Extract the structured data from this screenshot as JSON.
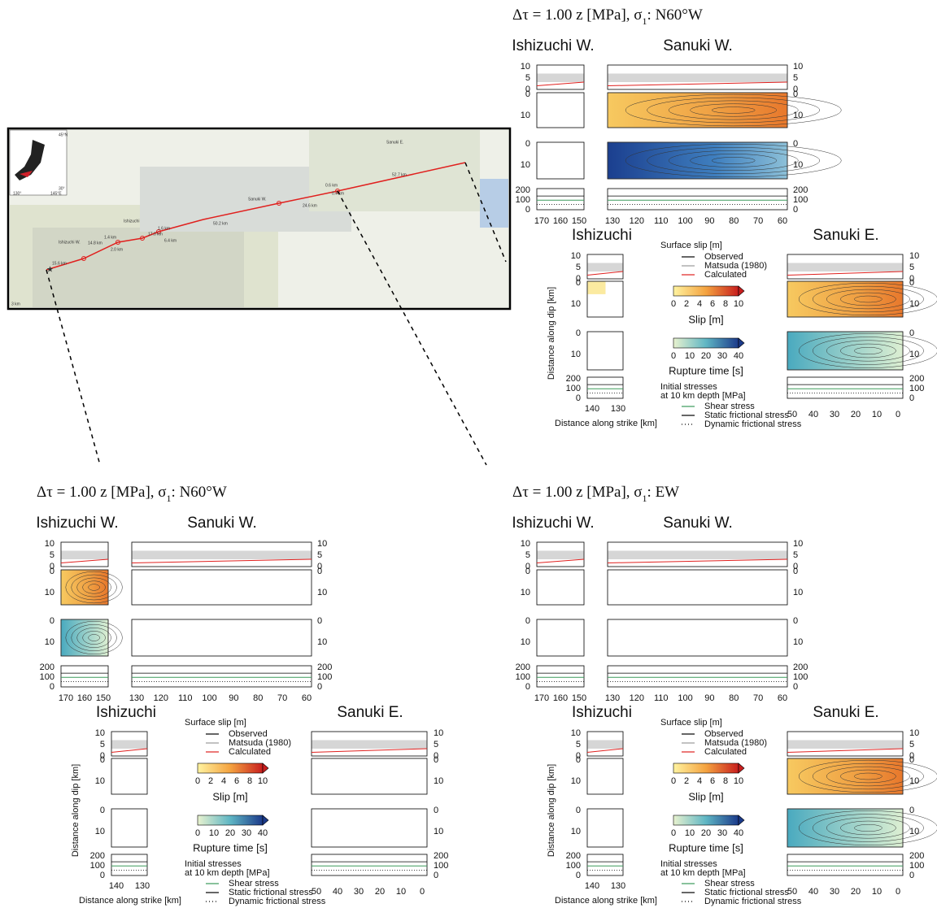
{
  "map": {
    "labels": [
      "45°N",
      "30°",
      "130°",
      "145°E",
      "Sanuki E.",
      "52.7 km",
      "0.6 km",
      "0.4 km",
      "Sanuki W.",
      "24.6 km",
      "50.2 km",
      "Ishizuchi",
      "1.6 km",
      "17.0 km",
      "6.4 km",
      "1.4 km",
      "Ishizuchi W.",
      "14.8 km",
      "2.0 km",
      "15.6 km",
      "3 km"
    ]
  },
  "figures": [
    {
      "title": {
        "text": "Δτ = 1.00 z [MPa], σ",
        "subscript": "1",
        "orientation": ": N60°W"
      },
      "panels": {
        "ishizuchi_w": {
          "label": "Ishizuchi W.",
          "xticks": [
            170,
            160,
            150
          ]
        },
        "sanuki_w": {
          "label": "Sanuki W.",
          "xticks": [
            130,
            120,
            110,
            100,
            90,
            80,
            70,
            60
          ]
        },
        "ishizuchi": {
          "label": "Ishizuchi",
          "xticks": [
            140,
            130
          ]
        },
        "sanuki_e": {
          "label": "Sanuki E.",
          "xticks": [
            50,
            40,
            30,
            20,
            10,
            0
          ]
        }
      },
      "slip_ticks": [
        10,
        5,
        0
      ],
      "dip_ticks": [
        0,
        10
      ],
      "stress_ticks": [
        200,
        100,
        0
      ],
      "y_label": "Distance along dip [km]",
      "x_label": "Distance along strike [km]",
      "legend": {
        "surface_slip": {
          "title": "Surface slip [m]",
          "items": [
            "Observed",
            "Matsuda (1980)",
            "Calculated"
          ]
        },
        "slip_colorbar": {
          "ticks": [
            0,
            2,
            4,
            6,
            8,
            10
          ],
          "label": "Slip [m]"
        },
        "rupture_colorbar": {
          "ticks": [
            0,
            10,
            20,
            30,
            40
          ],
          "label": "Rupture time [s]"
        },
        "stresses": {
          "title": [
            "Initial stresses",
            "at 10 km depth [MPa]"
          ],
          "items": [
            "Shear stress",
            "Static frictional stress",
            "Dynamic frictional stress"
          ]
        }
      }
    },
    {
      "title": {
        "text": "Δτ = 1.00 z [MPa], σ",
        "subscript": "1",
        "orientation": ": N60°W"
      },
      "panels": {
        "ishizuchi_w": {
          "label": "Ishizuchi W.",
          "xticks": [
            170,
            160,
            150
          ]
        },
        "sanuki_w": {
          "label": "Sanuki W.",
          "xticks": [
            130,
            120,
            110,
            100,
            90,
            80,
            70,
            60
          ]
        },
        "ishizuchi": {
          "label": "Ishizuchi",
          "xticks": [
            140,
            130
          ]
        },
        "sanuki_e": {
          "label": "Sanuki E.",
          "xticks": [
            50,
            40,
            30,
            20,
            10,
            0
          ]
        }
      },
      "slip_ticks": [
        10,
        5,
        0
      ],
      "dip_ticks": [
        0,
        10
      ],
      "stress_ticks": [
        200,
        100,
        0
      ],
      "y_label": "Distance along dip [km]",
      "x_label": "Distance along strike [km]",
      "legend": {
        "surface_slip": {
          "title": "Surface slip [m]",
          "items": [
            "Observed",
            "Matsuda (1980)",
            "Calculated"
          ]
        },
        "slip_colorbar": {
          "ticks": [
            0,
            2,
            4,
            6,
            8,
            10
          ],
          "label": "Slip [m]"
        },
        "rupture_colorbar": {
          "ticks": [
            0,
            10,
            20,
            30,
            40
          ],
          "label": "Rupture time [s]"
        },
        "stresses": {
          "title": [
            "Initial stresses",
            "at 10 km depth [MPa]"
          ],
          "items": [
            "Shear stress",
            "Static frictional stress",
            "Dynamic frictional stress"
          ]
        }
      }
    },
    {
      "title": {
        "text": "Δτ = 1.00 z [MPa], σ",
        "subscript": "1",
        "orientation": ": EW"
      },
      "panels": {
        "ishizuchi_w": {
          "label": "Ishizuchi W.",
          "xticks": [
            170,
            160,
            150
          ]
        },
        "sanuki_w": {
          "label": "Sanuki W.",
          "xticks": [
            130,
            120,
            110,
            100,
            90,
            80,
            70,
            60
          ]
        },
        "ishizuchi": {
          "label": "Ishizuchi",
          "xticks": [
            140,
            130
          ]
        },
        "sanuki_e": {
          "label": "Sanuki E.",
          "xticks": [
            50,
            40,
            30,
            20,
            10,
            0
          ]
        }
      },
      "slip_ticks": [
        10,
        5,
        0
      ],
      "dip_ticks": [
        0,
        10
      ],
      "stress_ticks": [
        200,
        100,
        0
      ],
      "y_label": "Distance along dip [km]",
      "x_label": "Distance along strike [km]",
      "legend": {
        "surface_slip": {
          "title": "Surface slip [m]",
          "items": [
            "Observed",
            "Matsuda (1980)",
            "Calculated"
          ]
        },
        "slip_colorbar": {
          "ticks": [
            0,
            2,
            4,
            6,
            8,
            10
          ],
          "label": "Slip [m]"
        },
        "rupture_colorbar": {
          "ticks": [
            0,
            10,
            20,
            30,
            40
          ],
          "label": "Rupture time [s]"
        },
        "stresses": {
          "title": [
            "Initial stresses",
            "at 10 km depth [MPa]"
          ],
          "items": [
            "Shear stress",
            "Static frictional stress",
            "Dynamic frictional stress"
          ]
        }
      }
    }
  ]
}
